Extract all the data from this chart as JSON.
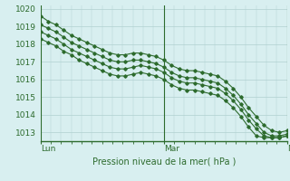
{
  "xlabel": "Pression niveau de la mer( hPa )",
  "x_ticks_labels": [
    "Lun",
    "Mar",
    "Mer"
  ],
  "x_ticks_pos": [
    0,
    24,
    48
  ],
  "ylim": [
    1012.5,
    1020.2
  ],
  "yticks": [
    1013,
    1014,
    1015,
    1016,
    1017,
    1018,
    1019,
    1020
  ],
  "bg_color": "#d8eff0",
  "grid_color": "#b0d0d0",
  "line_color": "#2d6b2d",
  "series": [
    [
      1019.6,
      1019.3,
      1019.1,
      1018.8,
      1018.5,
      1018.3,
      1018.1,
      1017.9,
      1017.7,
      1017.5,
      1017.4,
      1017.4,
      1017.5,
      1017.5,
      1017.4,
      1017.3,
      1017.1,
      1016.8,
      1016.6,
      1016.5,
      1016.5,
      1016.4,
      1016.3,
      1016.2,
      1015.9,
      1015.5,
      1015.0,
      1014.4,
      1013.9,
      1013.4,
      1013.1,
      1013.0,
      1013.1
    ],
    [
      1019.1,
      1018.9,
      1018.7,
      1018.4,
      1018.1,
      1017.9,
      1017.7,
      1017.5,
      1017.3,
      1017.1,
      1017.0,
      1017.0,
      1017.1,
      1017.1,
      1017.0,
      1016.9,
      1016.7,
      1016.4,
      1016.2,
      1016.1,
      1016.1,
      1016.0,
      1015.9,
      1015.8,
      1015.5,
      1015.1,
      1014.6,
      1014.0,
      1013.5,
      1013.0,
      1012.8,
      1012.8,
      1012.9
    ],
    [
      1018.7,
      1018.5,
      1018.3,
      1018.0,
      1017.7,
      1017.5,
      1017.3,
      1017.1,
      1016.9,
      1016.7,
      1016.6,
      1016.6,
      1016.7,
      1016.8,
      1016.7,
      1016.6,
      1016.4,
      1016.1,
      1015.9,
      1015.8,
      1015.8,
      1015.7,
      1015.6,
      1015.5,
      1015.2,
      1014.8,
      1014.3,
      1013.7,
      1013.2,
      1012.8,
      1012.7,
      1012.7,
      1012.8
    ],
    [
      1018.3,
      1018.1,
      1017.9,
      1017.6,
      1017.4,
      1017.1,
      1016.9,
      1016.7,
      1016.5,
      1016.3,
      1016.2,
      1016.2,
      1016.3,
      1016.4,
      1016.3,
      1016.2,
      1016.0,
      1015.7,
      1015.5,
      1015.4,
      1015.4,
      1015.3,
      1015.2,
      1015.1,
      1014.8,
      1014.4,
      1013.9,
      1013.3,
      1012.8,
      1012.7,
      1012.7,
      1012.7,
      1012.8
    ]
  ]
}
